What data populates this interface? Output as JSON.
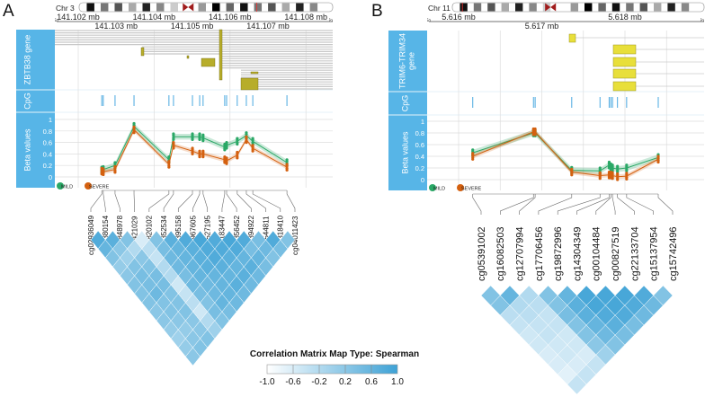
{
  "chart_data": [
    {
      "type": "line",
      "letter": "A",
      "chromosome": "Chr 3",
      "five_prime": "5'",
      "three_prime": "3'",
      "axis_labels_top": [
        "141.102 mb",
        "141.104 mb",
        "141.106 mb",
        "141.108 mb"
      ],
      "axis_labels_bottom": [
        "141.103 mb",
        "141.105 mb",
        "141.107 mb"
      ],
      "xlim_mb": [
        141.1015,
        141.1089
      ],
      "gene_track_label": "ZBTB38 gene",
      "cpg_track_label": "CpG",
      "beta_track_label": "Beta values",
      "beta_ticks": [
        "1",
        "0.8",
        "0.6",
        "0.4",
        "0.2",
        "0"
      ],
      "ylim": [
        0,
        1
      ],
      "legend": [
        {
          "label": "MILD",
          "color": "#2aa866"
        },
        {
          "label": "SEVERE",
          "color": "#d4600f"
        }
      ],
      "probes": [
        {
          "id": "cg02936049",
          "pos_mb": 141.10262,
          "mild": 0.12,
          "severe": 0.1
        },
        {
          "id": "cg21380154",
          "pos_mb": 141.10266,
          "mild": 0.13,
          "severe": 0.09
        },
        {
          "id": "cg03848978",
          "pos_mb": 141.10297,
          "mild": 0.2,
          "severe": 0.13
        },
        {
          "id": "cg11421029",
          "pos_mb": 141.10347,
          "mild": 0.88,
          "severe": 0.82
        },
        {
          "id": "cg06820102",
          "pos_mb": 141.10439,
          "mild": 0.3,
          "severe": 0.22
        },
        {
          "id": "cg04352534",
          "pos_mb": 141.10451,
          "mild": 0.7,
          "severe": 0.55
        },
        {
          "id": "cg25395158",
          "pos_mb": 141.10501,
          "mild": 0.7,
          "severe": 0.45
        },
        {
          "id": "cg23967605",
          "pos_mb": 141.1052,
          "mild": 0.7,
          "severe": 0.4
        },
        {
          "id": "cg00527195",
          "pos_mb": 141.10529,
          "mild": 0.68,
          "severe": 0.4
        },
        {
          "id": "cg03183447",
          "pos_mb": 141.10586,
          "mild": 0.52,
          "severe": 0.3
        },
        {
          "id": "cg17356452",
          "pos_mb": 141.10591,
          "mild": 0.55,
          "severe": 0.28
        },
        {
          "id": "cg10394922",
          "pos_mb": 141.10619,
          "mild": 0.62,
          "severe": 0.38
        },
        {
          "id": "cg13544811",
          "pos_mb": 141.10643,
          "mild": 0.72,
          "severe": 0.65
        },
        {
          "id": "cg13318410",
          "pos_mb": 141.1066,
          "mild": 0.62,
          "severe": 0.5
        },
        {
          "id": "cg04011423",
          "pos_mb": 141.1075,
          "mild": 0.25,
          "severe": 0.17
        }
      ],
      "correlation_upper": [
        [
          0.8,
          0.6,
          0.3,
          0.1,
          0.2,
          0.3,
          0.3,
          0.3,
          0.2,
          0.2,
          0.1,
          0.0,
          0.1,
          0.2
        ],
        [
          0.7,
          0.2,
          0.0,
          0.3,
          0.4,
          0.4,
          0.5,
          0.3,
          0.3,
          0.2,
          0.1,
          0.2,
          0.3
        ],
        [
          0.3,
          -0.2,
          0.2,
          0.3,
          0.4,
          0.4,
          0.3,
          0.3,
          0.3,
          0.2,
          0.2,
          0.3
        ],
        [
          -0.6,
          -0.3,
          -0.4,
          -0.2,
          -0.2,
          -0.5,
          -0.4,
          -0.3,
          -0.5,
          -0.2,
          0.0
        ],
        [
          0.3,
          0.4,
          0.5,
          0.5,
          0.4,
          0.5,
          0.4,
          0.3,
          0.4,
          0.3
        ],
        [
          0.7,
          0.6,
          0.6,
          0.6,
          0.6,
          0.5,
          0.5,
          0.6,
          0.4
        ],
        [
          0.8,
          0.7,
          0.7,
          0.7,
          0.6,
          0.6,
          0.6,
          0.5
        ],
        [
          0.9,
          0.8,
          0.8,
          0.7,
          0.6,
          0.7,
          0.5
        ],
        [
          0.8,
          0.8,
          0.7,
          0.6,
          0.7,
          0.5
        ],
        [
          0.9,
          0.8,
          0.6,
          0.7,
          0.5
        ],
        [
          0.8,
          0.4,
          0.6,
          0.4
        ],
        [
          0.4,
          0.5,
          0.3
        ],
        [
          0.8,
          0.4
        ],
        [
          0.3
        ]
      ]
    },
    {
      "type": "line",
      "letter": "B",
      "chromosome": "Chr 11",
      "five_prime": "5'",
      "three_prime": "3'",
      "axis_labels_top": [
        "5.616 mb",
        "5.618 mb"
      ],
      "axis_labels_bottom": [
        "5.617 mb"
      ],
      "xlim_mb": [
        5.6157,
        5.61903
      ],
      "gene_track_label": "TRIM6-TRIM34 gene",
      "cpg_track_label": "CpG",
      "beta_track_label": "Beta values",
      "beta_ticks": [
        "1",
        "0.8",
        "0.6",
        "0.4",
        "0.2",
        "0"
      ],
      "ylim": [
        0,
        1
      ],
      "legend": [
        {
          "label": "MILD",
          "color": "#2aa866"
        },
        {
          "label": "SEVERE",
          "color": "#d4600f"
        }
      ],
      "probes": [
        {
          "id": "cg05391002",
          "pos_mb": 5.61617,
          "mild": 0.46,
          "severe": 0.4
        },
        {
          "id": "cg16082503",
          "pos_mb": 5.6169,
          "mild": 0.8,
          "severe": 0.82
        },
        {
          "id": "cg12707994",
          "pos_mb": 5.61692,
          "mild": 0.8,
          "severe": 0.82
        },
        {
          "id": "cg17706456",
          "pos_mb": 5.61736,
          "mild": 0.16,
          "severe": 0.13
        },
        {
          "id": "cg19872996",
          "pos_mb": 5.6177,
          "mild": 0.15,
          "severe": 0.07
        },
        {
          "id": "cg14304349",
          "pos_mb": 5.61781,
          "mild": 0.25,
          "severe": 0.08
        },
        {
          "id": "cg00104484",
          "pos_mb": 5.61783,
          "mild": 0.22,
          "severe": 0.08
        },
        {
          "id": "cg00827519",
          "pos_mb": 5.61785,
          "mild": 0.2,
          "severe": 0.07
        },
        {
          "id": "cg22133704",
          "pos_mb": 5.61791,
          "mild": 0.18,
          "severe": 0.05
        },
        {
          "id": "cg15137954",
          "pos_mb": 5.61802,
          "mild": 0.2,
          "severe": 0.06
        },
        {
          "id": "cg15742496",
          "pos_mb": 5.6184,
          "mild": 0.38,
          "severe": 0.35
        }
      ],
      "correlation_upper": [
        [
          0.3,
          0.3,
          -0.3,
          -0.4,
          -0.5,
          -0.5,
          -0.6,
          -0.6,
          -0.7,
          -0.4
        ],
        [
          0.6,
          -0.2,
          -0.3,
          -0.4,
          -0.4,
          -0.5,
          -0.5,
          -0.6,
          -0.4
        ],
        [
          -0.2,
          -0.3,
          -0.4,
          -0.4,
          -0.5,
          -0.5,
          -0.6,
          -0.4
        ],
        [
          0.3,
          0.3,
          0.4,
          0.3,
          0.3,
          0.2,
          0.0
        ],
        [
          0.6,
          0.7,
          0.7,
          0.6,
          0.5,
          0.3
        ],
        [
          0.9,
          0.9,
          0.8,
          0.7,
          0.4
        ],
        [
          0.9,
          0.9,
          0.8,
          0.4
        ],
        [
          0.9,
          0.8,
          0.5
        ],
        [
          0.8,
          0.5
        ],
        [
          0.3
        ]
      ]
    }
  ],
  "colorbar": {
    "title": "Correlation Matrix Map Type: Spearman",
    "ticks": [
      "-1.0",
      "-0.6",
      "-0.2",
      "0.2",
      "0.6",
      "1.0"
    ],
    "range": [
      -1,
      1
    ],
    "low_color": "#ffffff",
    "high_color": "#3ea2d6"
  },
  "colors": {
    "track_label": "#57b5e7",
    "cpg": "#4aa8e0",
    "exon": "#e8df3a",
    "exon_dark": "#b7ad2a"
  }
}
